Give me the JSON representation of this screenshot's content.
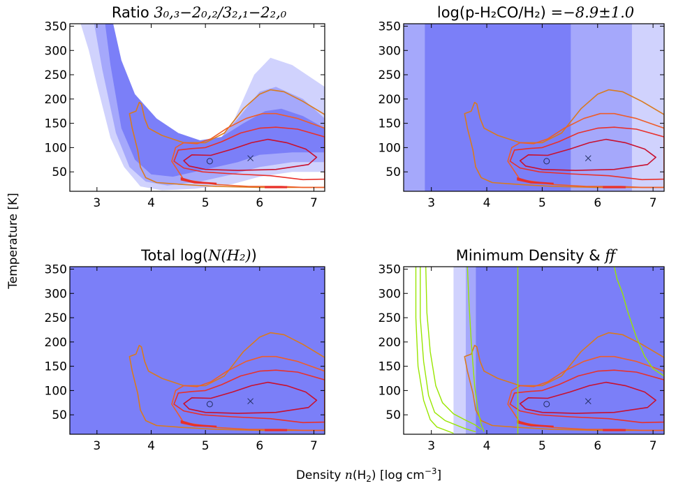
{
  "figure": {
    "xlabel": "Density n(H₂) [log cm⁻³]",
    "ylabel": "Temperature [K]"
  },
  "chart_data": {
    "type": "contour",
    "xlim": [
      2.5,
      7.2
    ],
    "ylim": [
      10,
      355
    ],
    "xticks": [
      3,
      4,
      5,
      6,
      7
    ],
    "yticks": [
      50,
      100,
      150,
      200,
      250,
      300,
      350
    ],
    "colors": {
      "fill_dark": "#7b7ff8",
      "fill_mid": "#a5a8fb",
      "fill_light": "#d0d2fd",
      "contour_1": "#d97a1e",
      "contour_2": "#ee5d2a",
      "contour_3": "#e8302a",
      "contour_4": "#c8102e",
      "marker": "#1f2a5c",
      "green": "#99e600"
    },
    "markers": [
      {
        "symbol": "o",
        "x": 5.08,
        "y": 72
      },
      {
        "symbol": "x",
        "x": 5.83,
        "y": 78
      }
    ],
    "contours": [
      {
        "level": 1,
        "points": [
          [
            3.6,
            170
          ],
          [
            3.72,
            175
          ],
          [
            3.78,
            193
          ],
          [
            3.82,
            190
          ],
          [
            3.88,
            160
          ],
          [
            3.95,
            140
          ],
          [
            4.2,
            125
          ],
          [
            4.6,
            110
          ],
          [
            5.0,
            110
          ],
          [
            5.35,
            130
          ],
          [
            5.7,
            180
          ],
          [
            6.0,
            210
          ],
          [
            6.2,
            219
          ],
          [
            6.45,
            215
          ],
          [
            6.8,
            195
          ],
          [
            7.2,
            168
          ],
          [
            7.2,
            18
          ],
          [
            6.8,
            18
          ],
          [
            6.0,
            18
          ],
          [
            5.2,
            20
          ],
          [
            4.6,
            24
          ],
          [
            4.1,
            28
          ],
          [
            3.9,
            38
          ],
          [
            3.8,
            60
          ],
          [
            3.75,
            95
          ],
          [
            3.65,
            140
          ],
          [
            3.6,
            170
          ]
        ]
      },
      {
        "level": 2,
        "points": [
          [
            4.38,
            72
          ],
          [
            4.45,
            100
          ],
          [
            4.6,
            110
          ],
          [
            4.85,
            108
          ],
          [
            5.1,
            118
          ],
          [
            5.4,
            140
          ],
          [
            5.75,
            160
          ],
          [
            6.05,
            170
          ],
          [
            6.3,
            170
          ],
          [
            6.7,
            160
          ],
          [
            7.2,
            140
          ],
          [
            7.2,
            18
          ],
          [
            6.8,
            18
          ],
          [
            6.4,
            20
          ],
          [
            5.8,
            20
          ],
          [
            5.2,
            24
          ],
          [
            4.6,
            34
          ],
          [
            4.38,
            72
          ]
        ]
      },
      {
        "level": 3,
        "points": [
          [
            4.42,
            72
          ],
          [
            4.5,
            95
          ],
          [
            4.75,
            98
          ],
          [
            5.0,
            100
          ],
          [
            5.3,
            112
          ],
          [
            5.65,
            130
          ],
          [
            6.0,
            140
          ],
          [
            6.3,
            142
          ],
          [
            6.7,
            138
          ],
          [
            7.2,
            122
          ],
          [
            7.2,
            35
          ],
          [
            6.8,
            34
          ],
          [
            6.2,
            42
          ],
          [
            5.5,
            46
          ],
          [
            4.95,
            50
          ],
          [
            4.6,
            58
          ],
          [
            4.42,
            72
          ]
        ]
      },
      {
        "level": 4,
        "points": [
          [
            4.6,
            73
          ],
          [
            4.75,
            85
          ],
          [
            5.1,
            84
          ],
          [
            5.5,
            97
          ],
          [
            5.85,
            110
          ],
          [
            6.15,
            117
          ],
          [
            6.5,
            110
          ],
          [
            6.85,
            97
          ],
          [
            7.05,
            80
          ],
          [
            6.9,
            65
          ],
          [
            6.3,
            55
          ],
          [
            5.6,
            53
          ],
          [
            5.0,
            55
          ],
          [
            4.7,
            62
          ],
          [
            4.6,
            73
          ]
        ]
      }
    ],
    "floor_bands": [
      {
        "points": [
          [
            4.55,
            38
          ],
          [
            4.8,
            30
          ],
          [
            5.2,
            27
          ],
          [
            5.2,
            25
          ],
          [
            4.8,
            27
          ],
          [
            4.55,
            33
          ]
        ]
      },
      {
        "points": [
          [
            6.1,
            20
          ],
          [
            6.5,
            20
          ],
          [
            6.5,
            17
          ],
          [
            6.1,
            17
          ]
        ]
      }
    ],
    "panels": [
      {
        "title_text": "Ratio ",
        "title_math": "3₀,₃−2₀,₂/3₂,₁−2₂,₀",
        "background": "none",
        "bands": [
          {
            "tone": "light",
            "upper": [
              [
                2.95,
                355
              ],
              [
                3.2,
                240
              ],
              [
                3.5,
                160
              ],
              [
                3.9,
                120
              ],
              [
                4.3,
                90
              ],
              [
                4.7,
                80
              ],
              [
                5.1,
                85
              ],
              [
                5.5,
                150
              ],
              [
                5.9,
                250
              ],
              [
                6.2,
                285
              ],
              [
                6.6,
                270
              ],
              [
                7.2,
                225
              ]
            ],
            "lower": [
              [
                7.2,
                50
              ],
              [
                6.6,
                50
              ],
              [
                6.0,
                40
              ],
              [
                5.5,
                25
              ],
              [
                4.8,
                15
              ],
              [
                4.2,
                12
              ],
              [
                3.8,
                20
              ],
              [
                3.5,
                60
              ],
              [
                3.25,
                120
              ],
              [
                3.0,
                230
              ],
              [
                2.85,
                300
              ],
              [
                2.7,
                355
              ]
            ]
          },
          {
            "tone": "mid",
            "upper": [
              [
                3.15,
                355
              ],
              [
                3.35,
                260
              ],
              [
                3.6,
                180
              ],
              [
                4.0,
                140
              ],
              [
                4.4,
                110
              ],
              [
                4.8,
                100
              ],
              [
                5.2,
                110
              ],
              [
                5.6,
                160
              ],
              [
                6.0,
                215
              ],
              [
                6.3,
                225
              ],
              [
                6.8,
                200
              ],
              [
                7.2,
                160
              ]
            ],
            "lower": [
              [
                7.2,
                70
              ],
              [
                6.6,
                70
              ],
              [
                6.0,
                60
              ],
              [
                5.5,
                45
              ],
              [
                4.9,
                30
              ],
              [
                4.3,
                22
              ],
              [
                3.9,
                30
              ],
              [
                3.6,
                60
              ],
              [
                3.35,
                130
              ],
              [
                3.1,
                260
              ],
              [
                2.95,
                355
              ]
            ]
          },
          {
            "tone": "dark",
            "upper": [
              [
                3.3,
                355
              ],
              [
                3.45,
                280
              ],
              [
                3.7,
                210
              ],
              [
                4.1,
                160
              ],
              [
                4.5,
                130
              ],
              [
                4.9,
                115
              ],
              [
                5.3,
                122
              ],
              [
                5.7,
                150
              ],
              [
                6.1,
                175
              ],
              [
                6.4,
                180
              ],
              [
                6.8,
                165
              ],
              [
                7.2,
                140
              ]
            ],
            "lower": [
              [
                7.2,
                90
              ],
              [
                6.6,
                90
              ],
              [
                6.0,
                85
              ],
              [
                5.6,
                70
              ],
              [
                5.0,
                55
              ],
              [
                4.4,
                40
              ],
              [
                4.0,
                45
              ],
              [
                3.7,
                75
              ],
              [
                3.45,
                140
              ],
              [
                3.25,
                270
              ],
              [
                3.15,
                355
              ]
            ]
          }
        ]
      },
      {
        "title_text": "log(p-H₂CO/H₂) ",
        "title_math": "=−8.9±1.0",
        "background": "none",
        "vbands": [
          {
            "tone": "mid",
            "x0": 2.5,
            "x1": 2.88
          },
          {
            "tone": "dark",
            "x0": 2.88,
            "x1": 5.52
          },
          {
            "tone": "mid",
            "x0": 5.52,
            "x1": 6.62
          },
          {
            "tone": "light",
            "x0": 6.62,
            "x1": 7.2
          }
        ]
      },
      {
        "title_text": "Total log(",
        "title_math": "N(H₂)",
        "title_suffix": ")",
        "background": "dark"
      },
      {
        "title_text": "Minimum Density & ",
        "title_math": "ff",
        "background": "none",
        "vbands": [
          {
            "tone": "none",
            "x0": 2.5,
            "x1": 3.4
          },
          {
            "tone": "light",
            "x0": 3.4,
            "x1": 3.62
          },
          {
            "tone": "mid",
            "x0": 3.62,
            "x1": 3.8
          },
          {
            "tone": "dark",
            "x0": 3.8,
            "x1": 7.2
          }
        ],
        "green_lines": [
          [
            [
              2.72,
              355
            ],
            [
              2.72,
              250
            ],
            [
              2.76,
              150
            ],
            [
              2.86,
              80
            ],
            [
              2.98,
              40
            ],
            [
              3.1,
              25
            ],
            [
              3.4,
              12
            ]
          ],
          [
            [
              2.8,
              355
            ],
            [
              2.8,
              250
            ],
            [
              2.86,
              160
            ],
            [
              2.95,
              90
            ],
            [
              3.06,
              55
            ],
            [
              3.25,
              38
            ],
            [
              3.6,
              22
            ],
            [
              3.8,
              15
            ]
          ],
          [
            [
              2.9,
              355
            ],
            [
              2.92,
              260
            ],
            [
              2.98,
              180
            ],
            [
              3.08,
              110
            ],
            [
              3.2,
              75
            ],
            [
              3.4,
              52
            ],
            [
              3.6,
              40
            ],
            [
              3.78,
              30
            ],
            [
              3.9,
              20
            ]
          ],
          [
            [
              3.65,
              355
            ],
            [
              3.68,
              280
            ],
            [
              3.72,
              200
            ],
            [
              3.78,
              110
            ],
            [
              3.84,
              60
            ],
            [
              3.9,
              30
            ],
            [
              3.95,
              15
            ]
          ],
          [
            [
              4.56,
              355
            ],
            [
              4.56,
              10
            ]
          ],
          [
            [
              6.3,
              355
            ],
            [
              6.35,
              330
            ],
            [
              6.45,
              300
            ],
            [
              6.55,
              260
            ],
            [
              6.7,
              210
            ],
            [
              6.85,
              170
            ],
            [
              7.0,
              145
            ],
            [
              7.2,
              130
            ]
          ]
        ]
      }
    ]
  }
}
